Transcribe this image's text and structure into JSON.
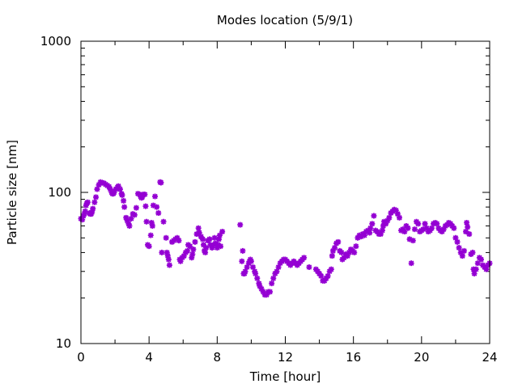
{
  "chart_data": {
    "type": "scatter",
    "title": "Modes location (5/9/1)",
    "xlabel": "Time [hour]",
    "ylabel": "Particle size [nm]",
    "xlim": [
      0,
      24
    ],
    "ylim": [
      10,
      1000
    ],
    "yscale": "log",
    "grid": false,
    "legend": "none",
    "marker": "star",
    "color": "#9400d3",
    "x_ticks": [
      0,
      4,
      8,
      12,
      16,
      20,
      24
    ],
    "x_tick_labels": [
      "0",
      "4",
      "8",
      "12",
      "16",
      "20",
      "24"
    ],
    "y_ticks": [
      10,
      100,
      1000
    ],
    "y_tick_labels": [
      "10",
      "100",
      "1000"
    ],
    "x_minor_ticks": [
      2,
      6,
      10,
      14,
      18,
      22
    ],
    "series": [
      {
        "points": [
          [
            0.0,
            67
          ],
          [
            0.08,
            66
          ],
          [
            0.15,
            70
          ],
          [
            0.2,
            72
          ],
          [
            0.25,
            75
          ],
          [
            0.3,
            82
          ],
          [
            0.35,
            85
          ],
          [
            0.4,
            86
          ],
          [
            0.5,
            73
          ],
          [
            0.55,
            72
          ],
          [
            0.6,
            72
          ],
          [
            0.65,
            74
          ],
          [
            0.7,
            78
          ],
          [
            0.8,
            86
          ],
          [
            0.88,
            93
          ],
          [
            0.95,
            105
          ],
          [
            1.05,
            112
          ],
          [
            1.15,
            117
          ],
          [
            1.25,
            116
          ],
          [
            1.35,
            115
          ],
          [
            1.45,
            113
          ],
          [
            1.55,
            111
          ],
          [
            1.65,
            109
          ],
          [
            1.72,
            105
          ],
          [
            1.8,
            100
          ],
          [
            1.85,
            98
          ],
          [
            1.9,
            98
          ],
          [
            1.95,
            100
          ],
          [
            2.05,
            105
          ],
          [
            2.15,
            108
          ],
          [
            2.2,
            110
          ],
          [
            2.3,
            105
          ],
          [
            2.38,
            98
          ],
          [
            2.42,
            96
          ],
          [
            2.5,
            88
          ],
          [
            2.55,
            80
          ],
          [
            2.65,
            68
          ],
          [
            2.72,
            65
          ],
          [
            2.8,
            62
          ],
          [
            2.85,
            60
          ],
          [
            2.95,
            67
          ],
          [
            3.05,
            72
          ],
          [
            3.15,
            71
          ],
          [
            3.25,
            79
          ],
          [
            3.35,
            98
          ],
          [
            3.45,
            97
          ],
          [
            3.5,
            94
          ],
          [
            3.55,
            92
          ],
          [
            3.6,
            93
          ],
          [
            3.65,
            97
          ],
          [
            3.75,
            97
          ],
          [
            3.8,
            81
          ],
          [
            3.85,
            64
          ],
          [
            3.92,
            45
          ],
          [
            4.0,
            44
          ],
          [
            4.1,
            52
          ],
          [
            4.15,
            63
          ],
          [
            4.2,
            60
          ],
          [
            4.25,
            82
          ],
          [
            4.35,
            94
          ],
          [
            4.45,
            80
          ],
          [
            4.55,
            73
          ],
          [
            4.65,
            117
          ],
          [
            4.7,
            116
          ],
          [
            4.75,
            40
          ],
          [
            4.85,
            64
          ],
          [
            5.0,
            50
          ],
          [
            5.05,
            40
          ],
          [
            5.1,
            38
          ],
          [
            5.15,
            36
          ],
          [
            5.2,
            33
          ],
          [
            5.35,
            47
          ],
          [
            5.45,
            48
          ],
          [
            5.55,
            49
          ],
          [
            5.65,
            50
          ],
          [
            5.75,
            48
          ],
          [
            5.8,
            36
          ],
          [
            5.85,
            35
          ],
          [
            5.95,
            37
          ],
          [
            6.05,
            38
          ],
          [
            6.15,
            40
          ],
          [
            6.25,
            41
          ],
          [
            6.3,
            45
          ],
          [
            6.4,
            44
          ],
          [
            6.5,
            37
          ],
          [
            6.55,
            39
          ],
          [
            6.6,
            42
          ],
          [
            6.7,
            47
          ],
          [
            6.8,
            53
          ],
          [
            6.9,
            58
          ],
          [
            6.95,
            54
          ],
          [
            7.05,
            51
          ],
          [
            7.15,
            49
          ],
          [
            7.2,
            45
          ],
          [
            7.25,
            41
          ],
          [
            7.3,
            40
          ],
          [
            7.35,
            43
          ],
          [
            7.45,
            48
          ],
          [
            7.55,
            49
          ],
          [
            7.6,
            45
          ],
          [
            7.7,
            43
          ],
          [
            7.8,
            45
          ],
          [
            7.85,
            50
          ],
          [
            7.9,
            46
          ],
          [
            8.0,
            43
          ],
          [
            8.05,
            45
          ],
          [
            8.1,
            49
          ],
          [
            8.15,
            52
          ],
          [
            8.2,
            44
          ],
          [
            8.3,
            55
          ],
          [
            9.35,
            61
          ],
          [
            9.45,
            35
          ],
          [
            9.5,
            41
          ],
          [
            9.55,
            29
          ],
          [
            9.6,
            29
          ],
          [
            9.65,
            30
          ],
          [
            9.75,
            32
          ],
          [
            9.85,
            34
          ],
          [
            9.9,
            35
          ],
          [
            9.95,
            36
          ],
          [
            10.0,
            35
          ],
          [
            10.1,
            32
          ],
          [
            10.2,
            30
          ],
          [
            10.25,
            29
          ],
          [
            10.35,
            27
          ],
          [
            10.45,
            25
          ],
          [
            10.5,
            24
          ],
          [
            10.6,
            23
          ],
          [
            10.7,
            22
          ],
          [
            10.8,
            21
          ],
          [
            10.9,
            21
          ],
          [
            11.0,
            22
          ],
          [
            11.1,
            22
          ],
          [
            11.2,
            25
          ],
          [
            11.3,
            27
          ],
          [
            11.4,
            29
          ],
          [
            11.5,
            30
          ],
          [
            11.6,
            32
          ],
          [
            11.7,
            34
          ],
          [
            11.8,
            35
          ],
          [
            11.9,
            36
          ],
          [
            12.0,
            36
          ],
          [
            12.1,
            35
          ],
          [
            12.2,
            34
          ],
          [
            12.3,
            33
          ],
          [
            12.4,
            34
          ],
          [
            12.5,
            35
          ],
          [
            12.6,
            34
          ],
          [
            12.7,
            33
          ],
          [
            12.8,
            34
          ],
          [
            12.9,
            35
          ],
          [
            13.0,
            36
          ],
          [
            13.1,
            37
          ],
          [
            13.4,
            32
          ],
          [
            13.8,
            31
          ],
          [
            13.9,
            30
          ],
          [
            14.0,
            29
          ],
          [
            14.1,
            28
          ],
          [
            14.2,
            26
          ],
          [
            14.3,
            26
          ],
          [
            14.4,
            27
          ],
          [
            14.5,
            28
          ],
          [
            14.6,
            30
          ],
          [
            14.7,
            31
          ],
          [
            14.75,
            38
          ],
          [
            14.8,
            41
          ],
          [
            14.9,
            43
          ],
          [
            15.0,
            46
          ],
          [
            15.1,
            47
          ],
          [
            15.2,
            41
          ],
          [
            15.3,
            40
          ],
          [
            15.35,
            36
          ],
          [
            15.45,
            37
          ],
          [
            15.55,
            39
          ],
          [
            15.65,
            38
          ],
          [
            15.75,
            40
          ],
          [
            15.85,
            42
          ],
          [
            15.95,
            41
          ],
          [
            16.05,
            40
          ],
          [
            16.15,
            44
          ],
          [
            16.25,
            50
          ],
          [
            16.35,
            52
          ],
          [
            16.45,
            51
          ],
          [
            16.55,
            53
          ],
          [
            16.65,
            52
          ],
          [
            16.75,
            55
          ],
          [
            16.85,
            56
          ],
          [
            16.95,
            54
          ],
          [
            17.0,
            58
          ],
          [
            17.1,
            62
          ],
          [
            17.2,
            70
          ],
          [
            17.3,
            56
          ],
          [
            17.4,
            55
          ],
          [
            17.5,
            53
          ],
          [
            17.6,
            53
          ],
          [
            17.7,
            56
          ],
          [
            17.75,
            60
          ],
          [
            17.8,
            64
          ],
          [
            17.9,
            62
          ],
          [
            18.0,
            65
          ],
          [
            18.1,
            68
          ],
          [
            18.2,
            73
          ],
          [
            18.3,
            75
          ],
          [
            18.4,
            77
          ],
          [
            18.5,
            76
          ],
          [
            18.6,
            72
          ],
          [
            18.7,
            68
          ],
          [
            18.8,
            56
          ],
          [
            18.9,
            57
          ],
          [
            19.0,
            55
          ],
          [
            19.1,
            60
          ],
          [
            19.2,
            58
          ],
          [
            19.3,
            49
          ],
          [
            19.4,
            34
          ],
          [
            19.5,
            48
          ],
          [
            19.6,
            57
          ],
          [
            19.7,
            64
          ],
          [
            19.8,
            62
          ],
          [
            19.9,
            55
          ],
          [
            20.0,
            56
          ],
          [
            20.1,
            57
          ],
          [
            20.2,
            62
          ],
          [
            20.3,
            58
          ],
          [
            20.4,
            55
          ],
          [
            20.5,
            56
          ],
          [
            20.6,
            58
          ],
          [
            20.7,
            62
          ],
          [
            20.8,
            63
          ],
          [
            20.9,
            62
          ],
          [
            21.0,
            58
          ],
          [
            21.1,
            56
          ],
          [
            21.2,
            55
          ],
          [
            21.3,
            57
          ],
          [
            21.4,
            60
          ],
          [
            21.5,
            61
          ],
          [
            21.6,
            63
          ],
          [
            21.7,
            62
          ],
          [
            21.8,
            60
          ],
          [
            21.9,
            58
          ],
          [
            22.0,
            50
          ],
          [
            22.1,
            47
          ],
          [
            22.2,
            43
          ],
          [
            22.3,
            40
          ],
          [
            22.4,
            38
          ],
          [
            22.5,
            41
          ],
          [
            22.6,
            55
          ],
          [
            22.65,
            63
          ],
          [
            22.7,
            59
          ],
          [
            22.8,
            53
          ],
          [
            22.9,
            39
          ],
          [
            23.0,
            40
          ],
          [
            23.05,
            31
          ],
          [
            23.1,
            29
          ],
          [
            23.2,
            31
          ],
          [
            23.3,
            34
          ],
          [
            23.4,
            37
          ],
          [
            23.5,
            36
          ],
          [
            23.6,
            33
          ],
          [
            23.7,
            32
          ],
          [
            23.8,
            31
          ],
          [
            23.9,
            33
          ],
          [
            24.0,
            34
          ]
        ]
      }
    ]
  }
}
